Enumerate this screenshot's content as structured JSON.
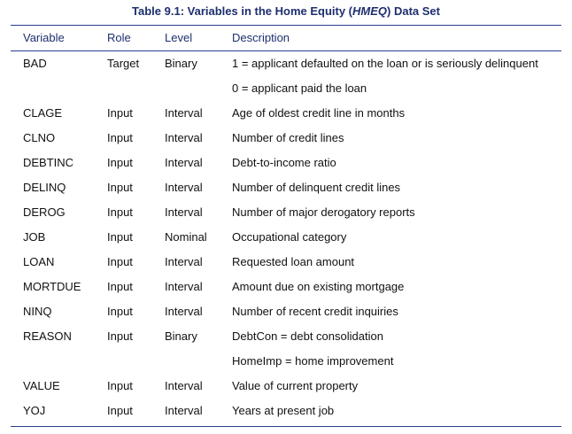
{
  "caption": {
    "prefix": "Table 9.1: Variables in the Home Equity (",
    "abbrev": "HMEQ",
    "suffix": ") Data Set"
  },
  "headers": {
    "variable": "Variable",
    "role": "Role",
    "level": "Level",
    "description": "Description"
  },
  "rows": [
    {
      "variable": "BAD",
      "role": "Target",
      "level": "Binary",
      "description": "1 = applicant defaulted on the loan or is seriously delinquent"
    },
    {
      "variable": "",
      "role": "",
      "level": "",
      "description": "0 = applicant paid the loan"
    },
    {
      "variable": "CLAGE",
      "role": "Input",
      "level": "Interval",
      "description": "Age of oldest credit line in months"
    },
    {
      "variable": "CLNO",
      "role": "Input",
      "level": "Interval",
      "description": "Number of credit lines"
    },
    {
      "variable": "DEBTINC",
      "role": "Input",
      "level": "Interval",
      "description": "Debt-to-income ratio"
    },
    {
      "variable": "DELINQ",
      "role": "Input",
      "level": "Interval",
      "description": "Number of delinquent credit lines"
    },
    {
      "variable": "DEROG",
      "role": "Input",
      "level": "Interval",
      "description": "Number of major derogatory reports"
    },
    {
      "variable": "JOB",
      "role": "Input",
      "level": "Nominal",
      "description": "Occupational category"
    },
    {
      "variable": "LOAN",
      "role": "Input",
      "level": "Interval",
      "description": "Requested loan amount"
    },
    {
      "variable": "MORTDUE",
      "role": "Input",
      "level": "Interval",
      "description": "Amount due on existing mortgage"
    },
    {
      "variable": "NINQ",
      "role": "Input",
      "level": "Interval",
      "description": "Number of recent credit inquiries"
    },
    {
      "variable": "REASON",
      "role": "Input",
      "level": "Binary",
      "description": "DebtCon = debt consolidation"
    },
    {
      "variable": "",
      "role": "",
      "level": "",
      "description": "HomeImp = home improvement"
    },
    {
      "variable": "VALUE",
      "role": "Input",
      "level": "Interval",
      "description": "Value of current property"
    },
    {
      "variable": "YOJ",
      "role": "Input",
      "level": "Interval",
      "description": "Years at present job"
    }
  ]
}
